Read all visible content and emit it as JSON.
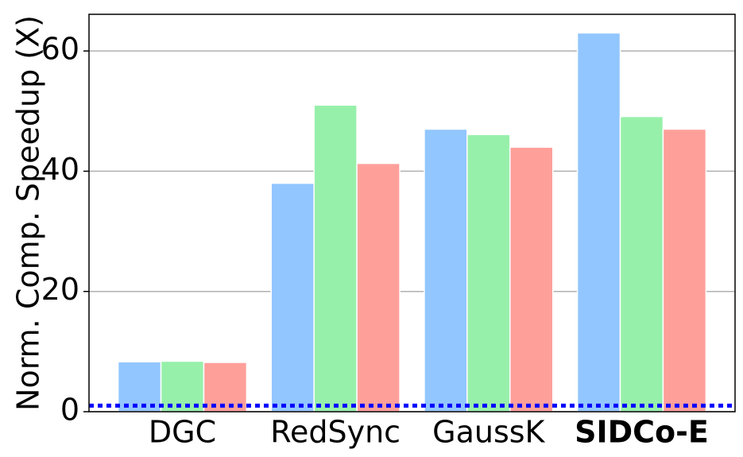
{
  "chart_data": {
    "type": "bar",
    "y_label": "Norm. Comp. Speedup (X)",
    "categories": [
      "DGC",
      "RedSync",
      "GaussK",
      "SIDCo-E"
    ],
    "series": [
      {
        "color": "#92c6ff",
        "values": [
          8.3,
          38,
          47,
          63
        ]
      },
      {
        "color": "#97f0aa",
        "values": [
          8.4,
          51,
          46.1,
          49.1
        ]
      },
      {
        "color": "#ff9f9a",
        "values": [
          8.2,
          41.3,
          44,
          47
        ]
      }
    ],
    "ylim": [
      0,
      66.1
    ],
    "yticks": [
      0,
      20,
      40,
      60
    ],
    "grid": true,
    "reference_line": {
      "value": 1,
      "color": "#0000ff"
    },
    "highlight": {
      "index": 3,
      "color": "#ff0000"
    }
  }
}
